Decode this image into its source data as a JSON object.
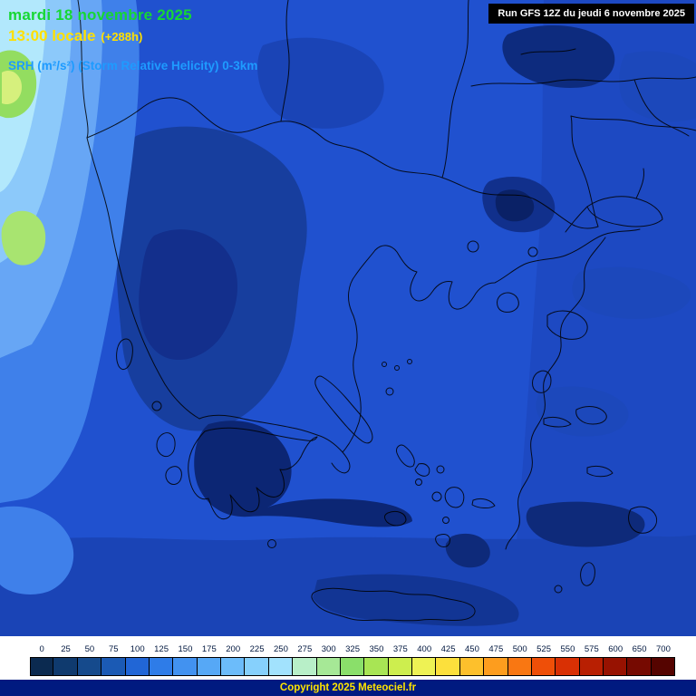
{
  "header": {
    "date": "mardi 18 novembre 2025",
    "time": "13:00 locale",
    "offset": "(+288h)",
    "parameter": "SRH (m²/s²) (Storm Relative Helicity) 0-3km"
  },
  "run_box": {
    "text": "Run GFS 12Z du jeudi 6 novembre 2025"
  },
  "legend": {
    "values": [
      "0",
      "25",
      "50",
      "75",
      "100",
      "125",
      "150",
      "175",
      "200",
      "225",
      "250",
      "275",
      "300",
      "325",
      "350",
      "375",
      "400",
      "425",
      "450",
      "475",
      "500",
      "525",
      "550",
      "575",
      "600",
      "650",
      "700"
    ],
    "colors": [
      "#0b2a50",
      "#0f3a6e",
      "#154a8c",
      "#1b5ab4",
      "#2166d6",
      "#2e7ce8",
      "#4292f0",
      "#56a8f6",
      "#6cbcfa",
      "#86d0fc",
      "#a2e2fd",
      "#b8efc8",
      "#a6e896",
      "#8adf6a",
      "#a8e554",
      "#cdee4e",
      "#eef254",
      "#fce03c",
      "#fdc02c",
      "#fd9d1e",
      "#f97712",
      "#ef4f08",
      "#d93004",
      "#b81f02",
      "#971201",
      "#760a01",
      "#550400"
    ]
  },
  "footer": {
    "copyright": "Copyright 2025 Meteociel.fr"
  }
}
